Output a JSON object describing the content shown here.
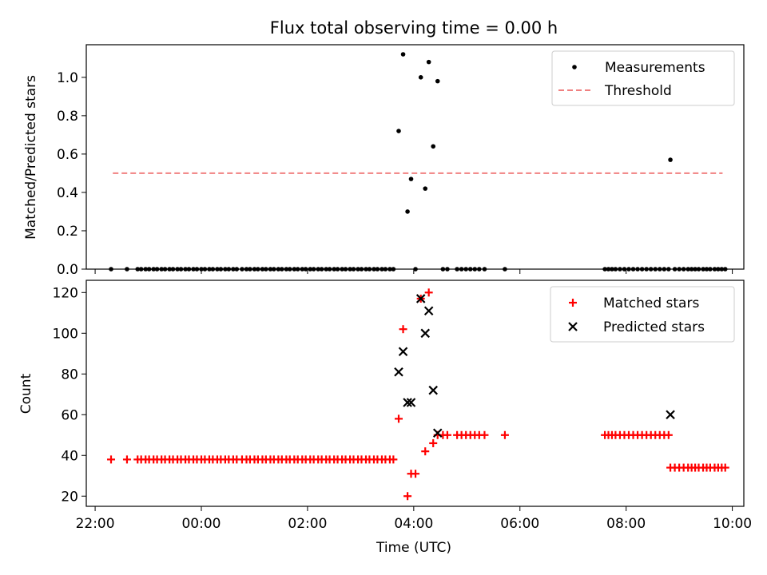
{
  "title": "Flux total observing time = 0.00 h",
  "colors": {
    "measurement": "#000000",
    "threshold": "#f08080",
    "matched": "#ff0000",
    "predicted": "#000000"
  },
  "chart_data": [
    {
      "type": "scatter",
      "ylabel": "Matched/Predicted stars",
      "xlabel": "",
      "xlim": [
        "21:50",
        "10:13"
      ],
      "ylim": [
        0,
        1.17
      ],
      "yticks": [
        "0.0",
        "0.2",
        "0.4",
        "0.6",
        "0.8",
        "1.0"
      ],
      "grid": false,
      "legend_position": "top-right",
      "threshold": {
        "name": "Threshold",
        "value": 0.5,
        "x_range": [
          "22:20",
          "09:49"
        ]
      },
      "series": [
        {
          "name": "Measurements",
          "marker": "dot",
          "points": [
            [
              "22:18",
              0
            ],
            [
              "22:36",
              0
            ],
            [
              "22:48",
              0
            ],
            [
              "22:52",
              0
            ],
            [
              "22:57",
              0
            ],
            [
              "23:01",
              0
            ],
            [
              "23:06",
              0
            ],
            [
              "23:10",
              0
            ],
            [
              "23:15",
              0
            ],
            [
              "23:19",
              0
            ],
            [
              "23:24",
              0
            ],
            [
              "23:28",
              0
            ],
            [
              "23:33",
              0
            ],
            [
              "23:37",
              0
            ],
            [
              "23:42",
              0
            ],
            [
              "23:46",
              0
            ],
            [
              "23:51",
              0
            ],
            [
              "23:55",
              0
            ],
            [
              "00:00",
              0
            ],
            [
              "00:04",
              0
            ],
            [
              "00:09",
              0
            ],
            [
              "00:13",
              0
            ],
            [
              "00:18",
              0
            ],
            [
              "00:22",
              0
            ],
            [
              "00:27",
              0
            ],
            [
              "00:31",
              0
            ],
            [
              "00:36",
              0
            ],
            [
              "00:40",
              0
            ],
            [
              "00:46",
              0
            ],
            [
              "00:51",
              0
            ],
            [
              "00:55",
              0
            ],
            [
              "01:00",
              0
            ],
            [
              "01:04",
              0
            ],
            [
              "01:09",
              0
            ],
            [
              "01:13",
              0
            ],
            [
              "01:18",
              0
            ],
            [
              "01:22",
              0
            ],
            [
              "01:27",
              0
            ],
            [
              "01:31",
              0
            ],
            [
              "01:36",
              0
            ],
            [
              "01:40",
              0
            ],
            [
              "01:45",
              0
            ],
            [
              "01:49",
              0
            ],
            [
              "01:54",
              0
            ],
            [
              "01:58",
              0
            ],
            [
              "02:03",
              0
            ],
            [
              "02:07",
              0
            ],
            [
              "02:12",
              0
            ],
            [
              "02:16",
              0
            ],
            [
              "02:21",
              0
            ],
            [
              "02:25",
              0
            ],
            [
              "02:30",
              0
            ],
            [
              "02:34",
              0
            ],
            [
              "02:39",
              0
            ],
            [
              "02:43",
              0
            ],
            [
              "02:48",
              0
            ],
            [
              "02:52",
              0
            ],
            [
              "02:57",
              0
            ],
            [
              "03:01",
              0
            ],
            [
              "03:06",
              0
            ],
            [
              "03:10",
              0
            ],
            [
              "03:15",
              0
            ],
            [
              "03:19",
              0
            ],
            [
              "03:24",
              0
            ],
            [
              "03:28",
              0
            ],
            [
              "03:33",
              0
            ],
            [
              "03:37",
              0
            ],
            [
              "03:43",
              0.72
            ],
            [
              "03:48",
              1.12
            ],
            [
              "03:53",
              0.3
            ],
            [
              "03:57",
              0.47
            ],
            [
              "04:02",
              0
            ],
            [
              "04:08",
              1.0
            ],
            [
              "04:13",
              0.42
            ],
            [
              "04:17",
              1.08
            ],
            [
              "04:22",
              0.64
            ],
            [
              "04:27",
              0.98
            ],
            [
              "04:33",
              0
            ],
            [
              "04:38",
              0
            ],
            [
              "04:49",
              0
            ],
            [
              "04:54",
              0
            ],
            [
              "04:59",
              0
            ],
            [
              "05:04",
              0
            ],
            [
              "05:09",
              0
            ],
            [
              "05:14",
              0
            ],
            [
              "05:20",
              0
            ],
            [
              "05:43",
              0
            ],
            [
              "07:36",
              0
            ],
            [
              "07:40",
              0
            ],
            [
              "07:44",
              0
            ],
            [
              "07:48",
              0
            ],
            [
              "07:53",
              0
            ],
            [
              "07:58",
              0
            ],
            [
              "08:03",
              0
            ],
            [
              "08:08",
              0
            ],
            [
              "08:13",
              0
            ],
            [
              "08:18",
              0
            ],
            [
              "08:23",
              0
            ],
            [
              "08:28",
              0
            ],
            [
              "08:33",
              0
            ],
            [
              "08:38",
              0
            ],
            [
              "08:43",
              0
            ],
            [
              "08:48",
              0
            ],
            [
              "08:50",
              0.57
            ],
            [
              "08:55",
              0
            ],
            [
              "09:00",
              0
            ],
            [
              "09:05",
              0
            ],
            [
              "09:10",
              0
            ],
            [
              "09:14",
              0
            ],
            [
              "09:18",
              0
            ],
            [
              "09:22",
              0
            ],
            [
              "09:27",
              0
            ],
            [
              "09:31",
              0
            ],
            [
              "09:35",
              0
            ],
            [
              "09:40",
              0
            ],
            [
              "09:44",
              0
            ],
            [
              "09:48",
              0
            ],
            [
              "09:52",
              0
            ]
          ]
        }
      ]
    },
    {
      "type": "scatter",
      "ylabel": "Count",
      "xlabel": "Time (UTC)",
      "xlim": [
        "21:50",
        "10:13"
      ],
      "ylim": [
        15,
        126
      ],
      "yticks": [
        "20",
        "40",
        "60",
        "80",
        "100",
        "120"
      ],
      "xticks": [
        "22:00",
        "00:00",
        "02:00",
        "04:00",
        "06:00",
        "08:00",
        "10:00"
      ],
      "grid": false,
      "legend_position": "top-right",
      "series": [
        {
          "name": "Matched stars",
          "marker": "plus",
          "points": [
            [
              "22:18",
              38
            ],
            [
              "22:36",
              38
            ],
            [
              "22:48",
              38
            ],
            [
              "22:52",
              38
            ],
            [
              "22:57",
              38
            ],
            [
              "23:01",
              38
            ],
            [
              "23:06",
              38
            ],
            [
              "23:10",
              38
            ],
            [
              "23:15",
              38
            ],
            [
              "23:19",
              38
            ],
            [
              "23:24",
              38
            ],
            [
              "23:28",
              38
            ],
            [
              "23:33",
              38
            ],
            [
              "23:37",
              38
            ],
            [
              "23:42",
              38
            ],
            [
              "23:46",
              38
            ],
            [
              "23:51",
              38
            ],
            [
              "23:55",
              38
            ],
            [
              "00:00",
              38
            ],
            [
              "00:04",
              38
            ],
            [
              "00:09",
              38
            ],
            [
              "00:13",
              38
            ],
            [
              "00:18",
              38
            ],
            [
              "00:22",
              38
            ],
            [
              "00:27",
              38
            ],
            [
              "00:31",
              38
            ],
            [
              "00:36",
              38
            ],
            [
              "00:40",
              38
            ],
            [
              "00:46",
              38
            ],
            [
              "00:51",
              38
            ],
            [
              "00:55",
              38
            ],
            [
              "01:00",
              38
            ],
            [
              "01:04",
              38
            ],
            [
              "01:09",
              38
            ],
            [
              "01:13",
              38
            ],
            [
              "01:18",
              38
            ],
            [
              "01:22",
              38
            ],
            [
              "01:27",
              38
            ],
            [
              "01:31",
              38
            ],
            [
              "01:36",
              38
            ],
            [
              "01:40",
              38
            ],
            [
              "01:45",
              38
            ],
            [
              "01:49",
              38
            ],
            [
              "01:54",
              38
            ],
            [
              "01:58",
              38
            ],
            [
              "02:03",
              38
            ],
            [
              "02:07",
              38
            ],
            [
              "02:12",
              38
            ],
            [
              "02:16",
              38
            ],
            [
              "02:21",
              38
            ],
            [
              "02:25",
              38
            ],
            [
              "02:30",
              38
            ],
            [
              "02:34",
              38
            ],
            [
              "02:39",
              38
            ],
            [
              "02:43",
              38
            ],
            [
              "02:48",
              38
            ],
            [
              "02:52",
              38
            ],
            [
              "02:57",
              38
            ],
            [
              "03:01",
              38
            ],
            [
              "03:06",
              38
            ],
            [
              "03:10",
              38
            ],
            [
              "03:15",
              38
            ],
            [
              "03:19",
              38
            ],
            [
              "03:24",
              38
            ],
            [
              "03:28",
              38
            ],
            [
              "03:33",
              38
            ],
            [
              "03:37",
              38
            ],
            [
              "03:43",
              58
            ],
            [
              "03:48",
              102
            ],
            [
              "03:53",
              20
            ],
            [
              "03:57",
              31
            ],
            [
              "04:02",
              31
            ],
            [
              "04:08",
              117
            ],
            [
              "04:13",
              42
            ],
            [
              "04:17",
              120
            ],
            [
              "04:22",
              46
            ],
            [
              "04:27",
              50
            ],
            [
              "04:33",
              50
            ],
            [
              "04:38",
              50
            ],
            [
              "04:49",
              50
            ],
            [
              "04:54",
              50
            ],
            [
              "04:59",
              50
            ],
            [
              "05:04",
              50
            ],
            [
              "05:09",
              50
            ],
            [
              "05:14",
              50
            ],
            [
              "05:20",
              50
            ],
            [
              "05:43",
              50
            ],
            [
              "07:36",
              50
            ],
            [
              "07:40",
              50
            ],
            [
              "07:44",
              50
            ],
            [
              "07:48",
              50
            ],
            [
              "07:53",
              50
            ],
            [
              "07:58",
              50
            ],
            [
              "08:03",
              50
            ],
            [
              "08:08",
              50
            ],
            [
              "08:13",
              50
            ],
            [
              "08:18",
              50
            ],
            [
              "08:23",
              50
            ],
            [
              "08:28",
              50
            ],
            [
              "08:33",
              50
            ],
            [
              "08:38",
              50
            ],
            [
              "08:43",
              50
            ],
            [
              "08:48",
              50
            ],
            [
              "08:50",
              34
            ],
            [
              "08:55",
              34
            ],
            [
              "09:00",
              34
            ],
            [
              "09:05",
              34
            ],
            [
              "09:10",
              34
            ],
            [
              "09:14",
              34
            ],
            [
              "09:18",
              34
            ],
            [
              "09:22",
              34
            ],
            [
              "09:27",
              34
            ],
            [
              "09:31",
              34
            ],
            [
              "09:35",
              34
            ],
            [
              "09:40",
              34
            ],
            [
              "09:44",
              34
            ],
            [
              "09:48",
              34
            ],
            [
              "09:52",
              34
            ]
          ]
        },
        {
          "name": "Predicted stars",
          "marker": "x",
          "points": [
            [
              "03:43",
              81
            ],
            [
              "03:48",
              91
            ],
            [
              "03:53",
              66
            ],
            [
              "03:57",
              66
            ],
            [
              "04:08",
              117
            ],
            [
              "04:13",
              100
            ],
            [
              "04:17",
              111
            ],
            [
              "04:22",
              72
            ],
            [
              "04:27",
              51
            ],
            [
              "08:50",
              60
            ]
          ]
        }
      ]
    }
  ]
}
